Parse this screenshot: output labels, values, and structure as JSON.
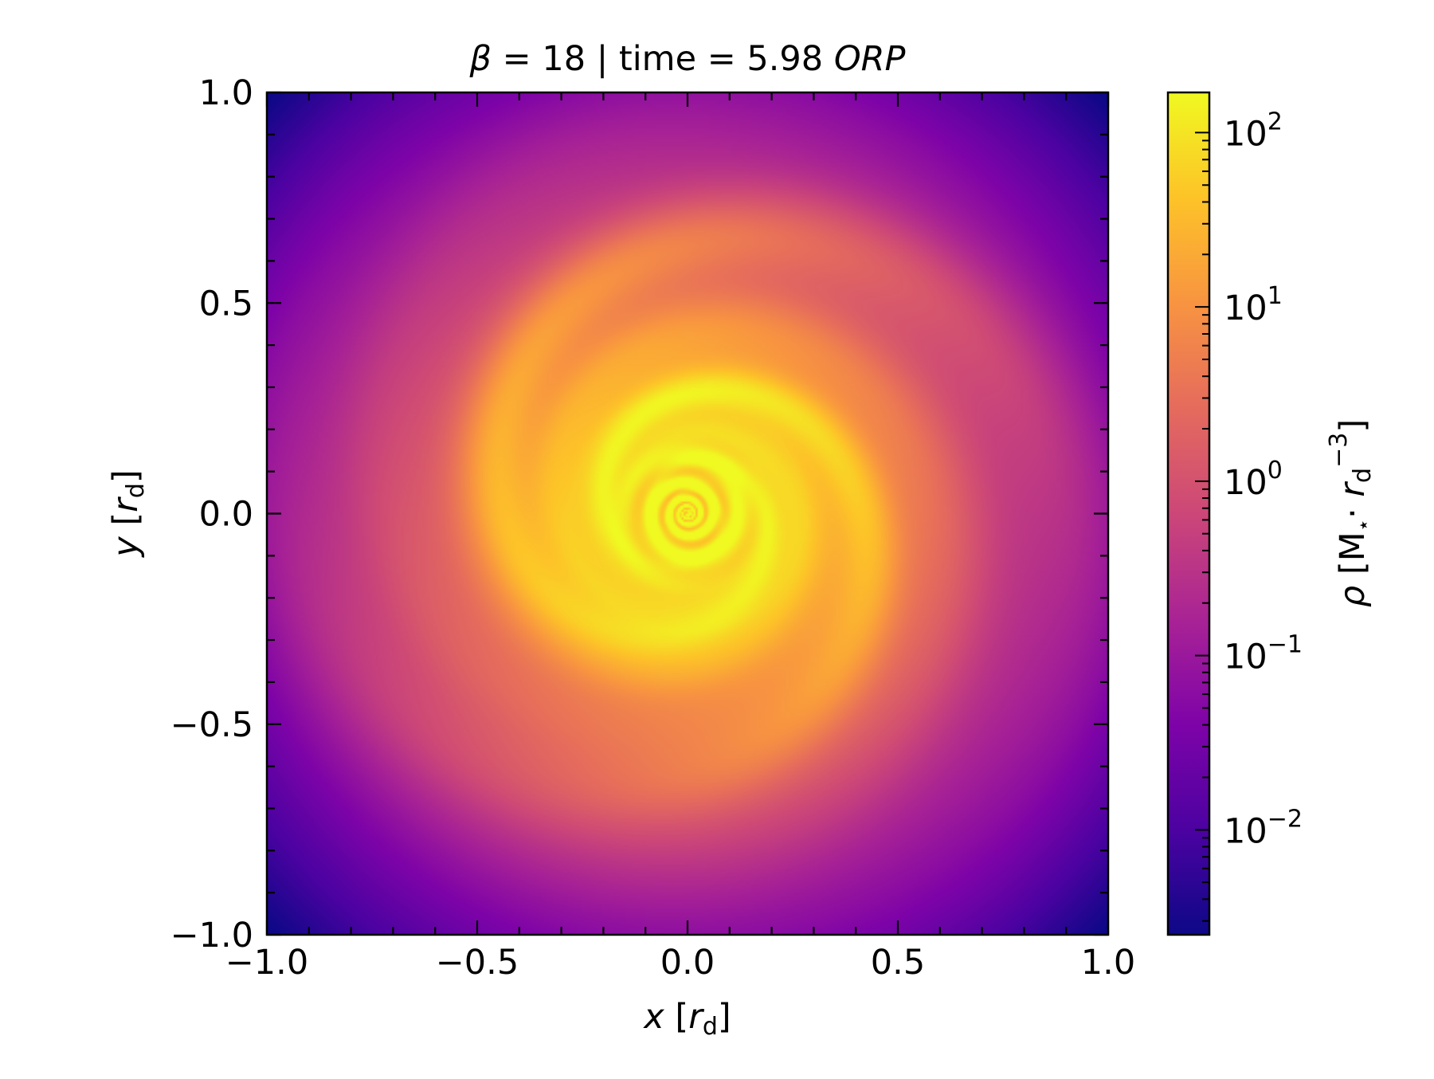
{
  "chart_data": {
    "type": "heatmap",
    "title": {
      "beta_symbol": "β",
      "beta_value": "= 18 | time = 5.98",
      "time_unit": "ORP"
    },
    "xlabel": {
      "var": "x",
      "unit": "r",
      "sub": "d"
    },
    "ylabel": {
      "var": "y",
      "unit": "r",
      "sub": "d"
    },
    "xlim": [
      -1.0,
      1.0
    ],
    "ylim": [
      -1.0,
      1.0
    ],
    "xticks": [
      -1.0,
      -0.5,
      0.0,
      0.5,
      1.0
    ],
    "yticks": [
      -1.0,
      -0.5,
      0.0,
      0.5,
      1.0
    ],
    "xtick_labels": [
      "−1.0",
      "−0.5",
      "0.0",
      "0.5",
      "1.0"
    ],
    "ytick_labels": [
      "−1.0",
      "−0.5",
      "0.0",
      "0.5",
      "1.0"
    ],
    "grid": false,
    "colormap": "plasma",
    "colorbar": {
      "scale": "log",
      "range": [
        0.0025,
        170
      ],
      "ticks": [
        {
          "value": 0.01,
          "base": "10",
          "exp": "−2"
        },
        {
          "value": 0.1,
          "base": "10",
          "exp": "−1"
        },
        {
          "value": 1,
          "base": "10",
          "exp": "0"
        },
        {
          "value": 10,
          "base": "10",
          "exp": "1"
        },
        {
          "value": 100,
          "base": "10",
          "exp": "2"
        }
      ],
      "label": {
        "var": "ρ",
        "open": "[M",
        "star": "⋆",
        "dot": "·",
        "unit": "r",
        "sub": "d",
        "sup": "−3",
        "close": "]"
      }
    },
    "field": {
      "description_of_structure": "log-density spiral disk",
      "log_rho_center": 2.2,
      "log_rho_edge": -2.6,
      "spiral_arms": 2,
      "spiral_sense": "counterclockwise outward"
    }
  }
}
